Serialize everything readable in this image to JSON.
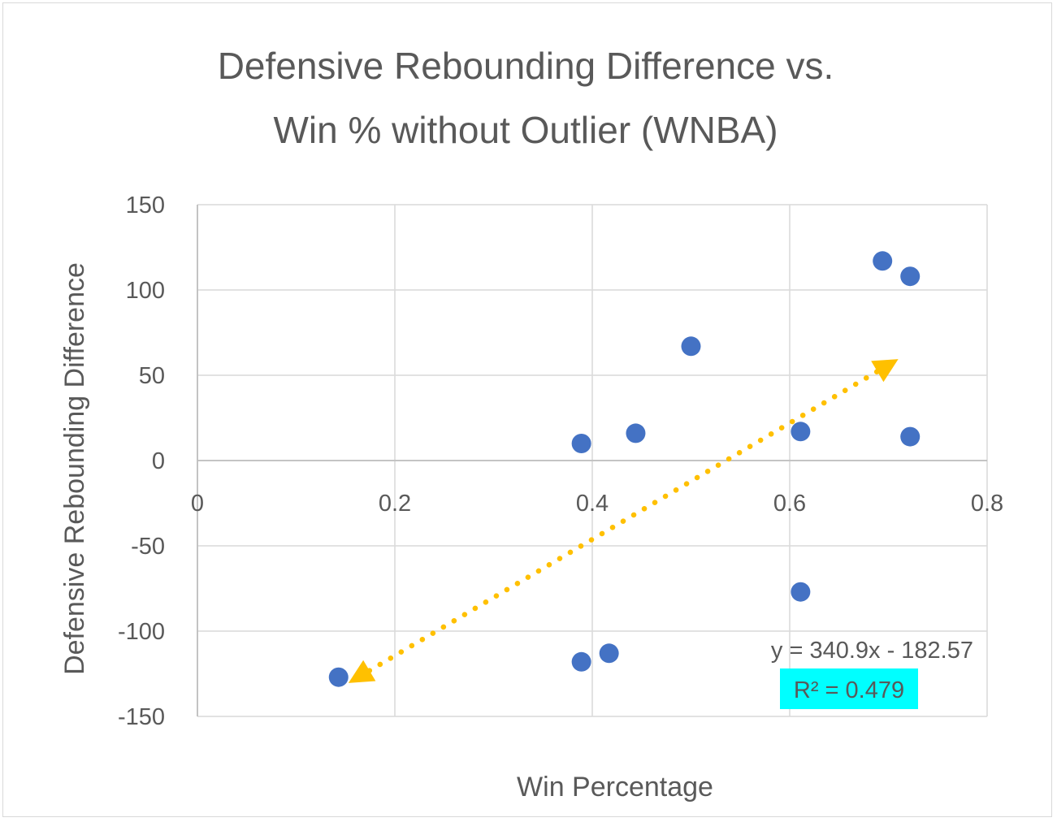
{
  "chart_data": {
    "type": "scatter",
    "title_lines": [
      "Defensive Rebounding Difference vs.",
      "Win % without Outlier (WNBA)"
    ],
    "xlabel": "Win Percentage",
    "ylabel": "Defensive Rebounding Difference",
    "xlim": [
      0,
      0.8
    ],
    "ylim": [
      -150,
      150
    ],
    "x_ticks": [
      0,
      0.2,
      0.4,
      0.6,
      0.8
    ],
    "x_tick_labels": [
      "0",
      "0.2",
      "0.4",
      "0.6",
      "0.8"
    ],
    "y_ticks": [
      150,
      100,
      50,
      0,
      -50,
      -100,
      -150
    ],
    "y_tick_labels": [
      "150",
      "100",
      "50",
      "0",
      "-50",
      "-100",
      "-150"
    ],
    "grid": true,
    "series": [
      {
        "points": [
          {
            "x": 0.143,
            "y": -127
          },
          {
            "x": 0.389,
            "y": -118
          },
          {
            "x": 0.417,
            "y": -113
          },
          {
            "x": 0.389,
            "y": 10
          },
          {
            "x": 0.444,
            "y": 16
          },
          {
            "x": 0.5,
            "y": 67
          },
          {
            "x": 0.611,
            "y": 17
          },
          {
            "x": 0.611,
            "y": -77
          },
          {
            "x": 0.694,
            "y": 117
          },
          {
            "x": 0.722,
            "y": 108
          },
          {
            "x": 0.722,
            "y": 14
          }
        ],
        "color": "#4472c4"
      }
    ],
    "trendline": {
      "type": "linear",
      "slope": 340.9,
      "intercept": -182.57,
      "x_range": [
        0.153,
        0.71
      ],
      "color": "#ffc000",
      "style": "dotted",
      "equation_label": "y = 340.9x - 182.57",
      "r2_label": "R² = 0.479",
      "r2_highlight_color": "#00ffff"
    }
  }
}
